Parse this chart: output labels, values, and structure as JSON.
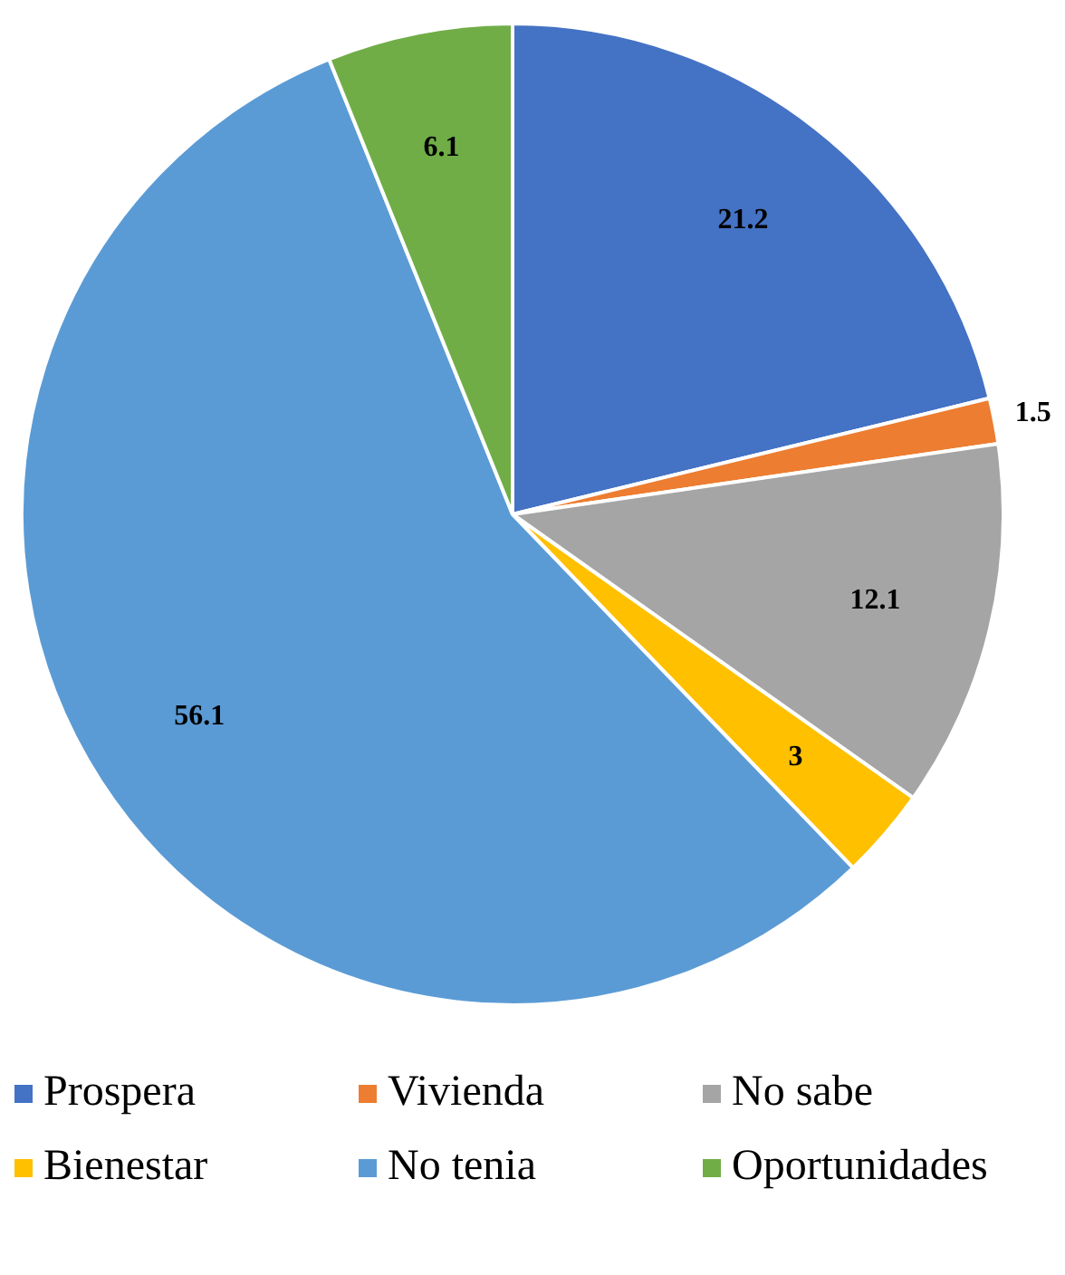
{
  "chart_data": {
    "type": "pie",
    "categories": [
      "Prospera",
      "Vivienda",
      "No sabe",
      "Bienestar",
      "No tenia",
      "Oportunidades"
    ],
    "values": [
      21.2,
      1.5,
      12.1,
      3,
      56.1,
      6.1
    ],
    "colors": [
      "#4472c4",
      "#ed7d31",
      "#a5a5a5",
      "#ffc000",
      "#5b9bd5",
      "#70ad47"
    ],
    "data_labels": true,
    "legend": "bottom"
  }
}
